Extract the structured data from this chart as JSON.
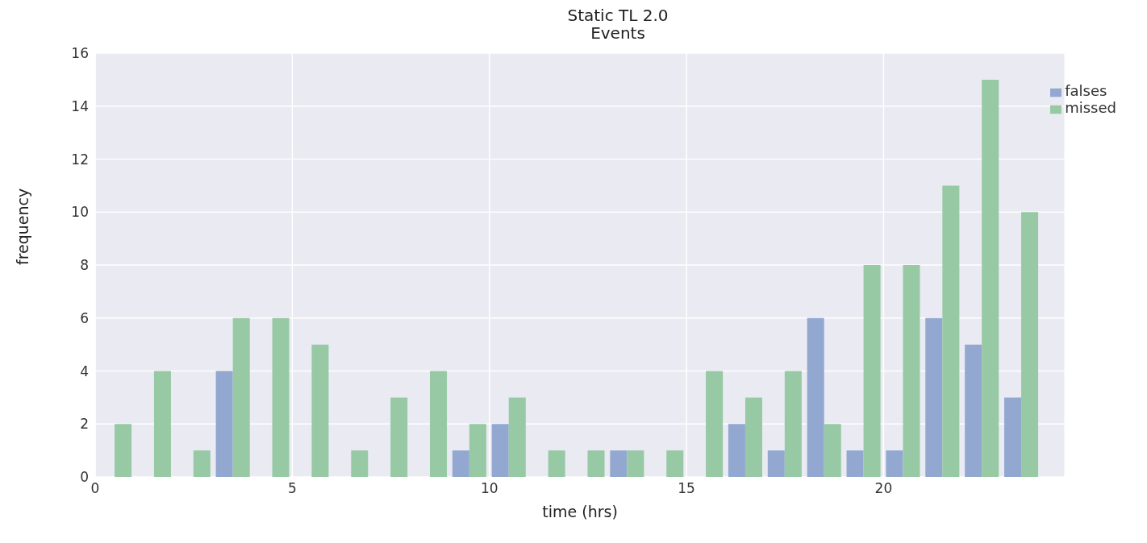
{
  "chart_data": {
    "type": "histogram",
    "title": "Static TL 2.0",
    "subtitle": "Events",
    "xlabel": "time (hrs)",
    "ylabel": "frequency",
    "bins": [
      0,
      1,
      2,
      3,
      4,
      5,
      6,
      7,
      8,
      9,
      10,
      11,
      12,
      13,
      14,
      15,
      16,
      17,
      18,
      19,
      20,
      21,
      22,
      23,
      24
    ],
    "series": [
      {
        "name": "falses",
        "color": "#92a8d1",
        "values": [
          0,
          0,
          0,
          4,
          0,
          0,
          0,
          0,
          0,
          1,
          2,
          0,
          0,
          1,
          0,
          0,
          2,
          1,
          6,
          1,
          1,
          6,
          5,
          3
        ]
      },
      {
        "name": "missed",
        "color": "#97c9a5",
        "values": [
          2,
          4,
          1,
          6,
          6,
          5,
          1,
          3,
          4,
          2,
          3,
          1,
          1,
          1,
          1,
          4,
          3,
          4,
          2,
          8,
          8,
          11,
          15,
          10
        ]
      }
    ],
    "xlim": [
      0,
      24.6
    ],
    "xticks": [
      0,
      5,
      10,
      15,
      20
    ],
    "ylim": [
      0,
      16
    ],
    "yticks": [
      0,
      2,
      4,
      6,
      8,
      10,
      12,
      14,
      16
    ],
    "grid": true,
    "legend": "top right"
  }
}
